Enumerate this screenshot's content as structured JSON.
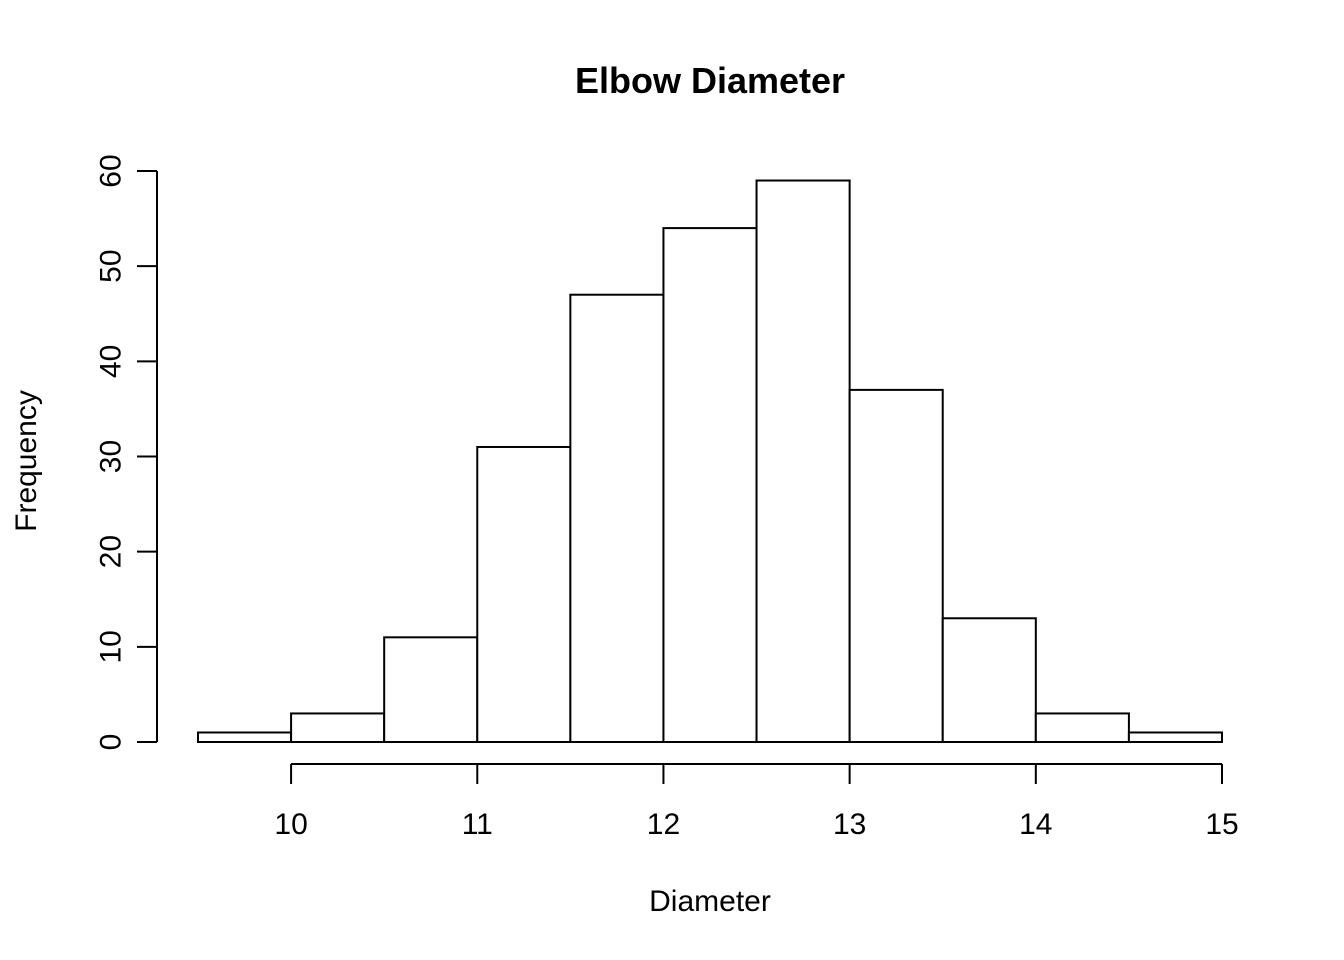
{
  "chart_data": {
    "type": "bar",
    "title": "Elbow Diameter",
    "xlabel": "Diameter",
    "ylabel": "Frequency",
    "bin_edges": [
      9.5,
      10,
      10.5,
      11,
      11.5,
      12,
      12.5,
      13,
      13.5,
      14,
      14.5,
      15
    ],
    "values": [
      1,
      3,
      11,
      31,
      47,
      54,
      59,
      37,
      13,
      3,
      1
    ],
    "x_ticks": [
      10,
      11,
      12,
      13,
      14,
      15
    ],
    "y_ticks": [
      0,
      10,
      20,
      30,
      40,
      50,
      60
    ],
    "xlim": [
      9.5,
      15
    ],
    "ylim": [
      0,
      60
    ],
    "grid": false,
    "bar_fill": "#ffffff",
    "bar_stroke": "#000000"
  }
}
